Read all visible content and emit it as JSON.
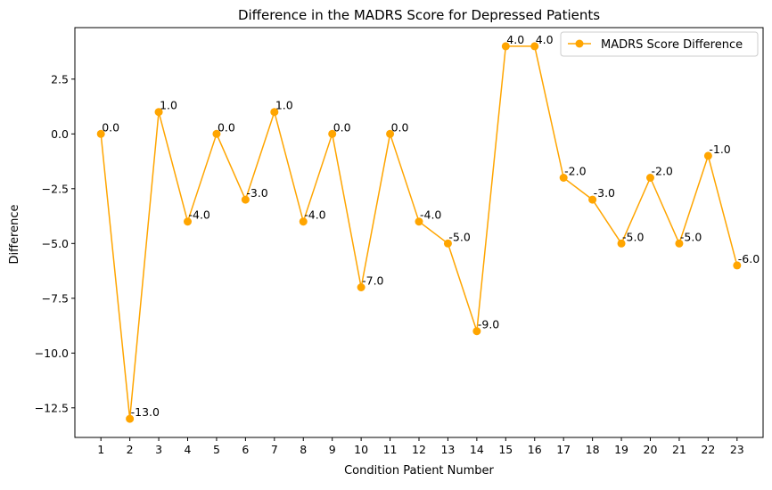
{
  "chart_data": {
    "type": "line",
    "title": "Difference in the MADRS Score for Depressed Patients",
    "xlabel": "Condition Patient Number",
    "ylabel": "Difference",
    "x": [
      1,
      2,
      3,
      4,
      5,
      6,
      7,
      8,
      9,
      10,
      11,
      12,
      13,
      14,
      15,
      16,
      17,
      18,
      19,
      20,
      21,
      22,
      23
    ],
    "x_tick_labels": [
      "1",
      "2",
      "3",
      "4",
      "5",
      "6",
      "7",
      "8",
      "9",
      "10",
      "11",
      "12",
      "13",
      "14",
      "15",
      "16",
      "17",
      "18",
      "19",
      "20",
      "21",
      "22",
      "23"
    ],
    "series": [
      {
        "name": "MADRS Score Difference",
        "color": "#ffa500",
        "marker": "circle",
        "values": [
          0,
          -13,
          1,
          -4,
          0,
          -3,
          1,
          -4,
          0,
          -7,
          0,
          -4,
          -5,
          -9,
          4,
          4,
          -2,
          -3,
          -5,
          -2,
          -5,
          -1,
          -6
        ],
        "data_labels": [
          "0.0",
          "-13.0",
          "1.0",
          "-4.0",
          "0.0",
          "-3.0",
          "1.0",
          "-4.0",
          "0.0",
          "-7.0",
          "0.0",
          "-4.0",
          "-5.0",
          "-9.0",
          "4.0",
          "4.0",
          "-2.0",
          "-3.0",
          "-5.0",
          "-2.0",
          "-5.0",
          "-1.0",
          "-6.0"
        ]
      }
    ],
    "xlim": [
      0.1,
      23.9
    ],
    "ylim": [
      -13.85,
      4.85
    ],
    "y_ticks": [
      2.5,
      0,
      -2.5,
      -5,
      -7.5,
      -10,
      -12.5
    ],
    "y_tick_labels": [
      "2.5",
      "0.0",
      "−2.5",
      "−5.0",
      "−7.5",
      "−10.0",
      "−12.5"
    ],
    "grid": false,
    "legend_position": "upper right"
  }
}
